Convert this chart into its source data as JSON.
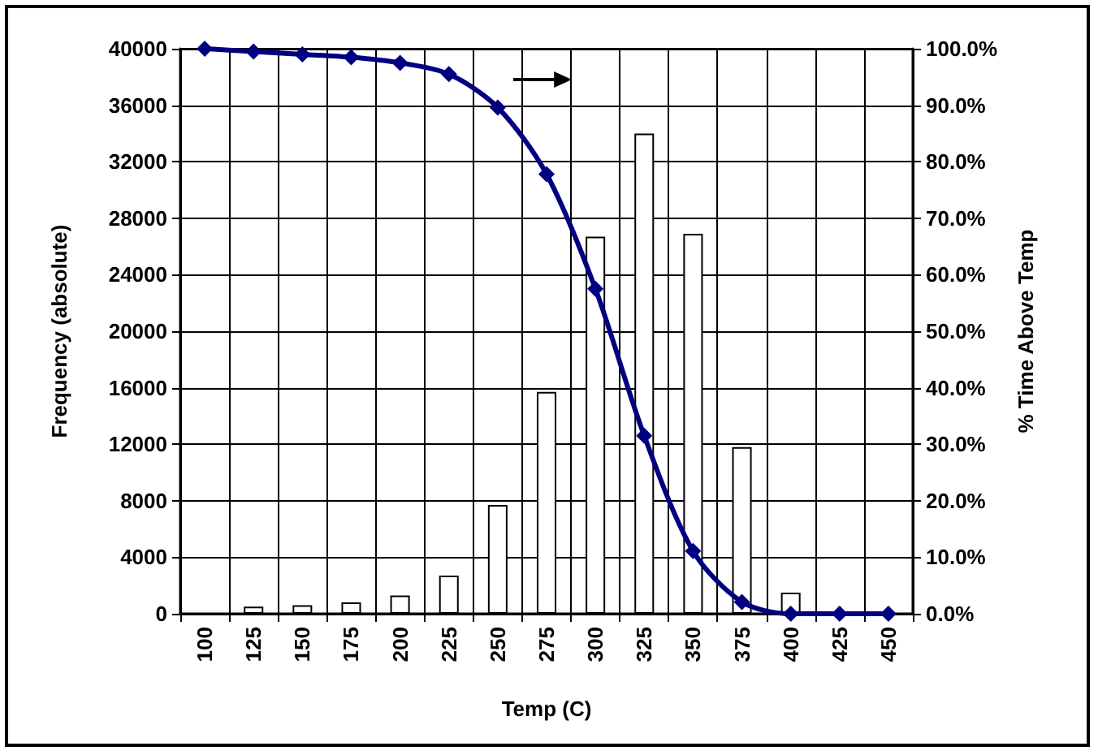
{
  "chart_data": {
    "type": "bar",
    "xlabel": "Temp (C)",
    "ylabel": "Frequency (absolute)",
    "y2label": "% Time Above Temp",
    "categories": [
      "100",
      "125",
      "150",
      "175",
      "200",
      "225",
      "250",
      "275",
      "300",
      "325",
      "350",
      "375",
      "400",
      "425",
      "450"
    ],
    "series": [
      {
        "color": "#ffffff",
        "values": [
          0,
          500,
          600,
          800,
          1300,
          2700,
          7700,
          15700,
          26700,
          34000,
          26900,
          11800,
          1500,
          0,
          0
        ]
      },
      {
        "type": "line",
        "axis": "y2",
        "color": "#000080",
        "marker": "diamond",
        "values": [
          100,
          99.5,
          99,
          98.5,
          97.5,
          95.5,
          89.6,
          77.8,
          57.5,
          31.5,
          11.1,
          2.1,
          0,
          0,
          0
        ]
      }
    ],
    "ylim": [
      0,
      40000
    ],
    "yticks": [
      0,
      4000,
      8000,
      12000,
      16000,
      20000,
      24000,
      28000,
      32000,
      36000,
      40000
    ],
    "y2lim": [
      0,
      100
    ],
    "y2ticks": [
      {
        "value": 0,
        "label": "0.0%"
      },
      {
        "value": 10,
        "label": "10.0%"
      },
      {
        "value": 20,
        "label": "20.0%"
      },
      {
        "value": 30,
        "label": "30.0%"
      },
      {
        "value": 40,
        "label": "40.0%"
      },
      {
        "value": 50,
        "label": "50.0%"
      },
      {
        "value": 60,
        "label": "60.0%"
      },
      {
        "value": 70,
        "label": "70.0%"
      },
      {
        "value": 80,
        "label": "80.0%"
      },
      {
        "value": 90,
        "label": "90.0%"
      },
      {
        "value": 100,
        "label": "100.0%"
      }
    ],
    "grid": true
  }
}
